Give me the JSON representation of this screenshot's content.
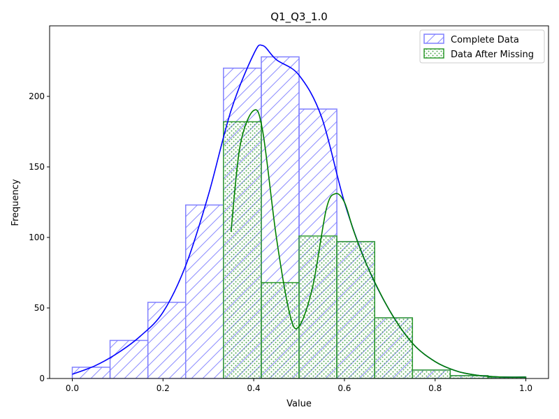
{
  "chart_data": {
    "type": "histogram",
    "title": "Q1_Q3_1.0",
    "xlabel": "Value",
    "ylabel": "Frequency",
    "xlim": [
      -0.05,
      1.05
    ],
    "ylim": [
      0,
      250
    ],
    "xticks": [
      0.0,
      0.2,
      0.4,
      0.6,
      0.8,
      1.0
    ],
    "xtick_labels": [
      "0.0",
      "0.2",
      "0.4",
      "0.6",
      "0.8",
      "1.0"
    ],
    "yticks": [
      0,
      50,
      100,
      150,
      200
    ],
    "ytick_labels": [
      "0",
      "50",
      "100",
      "150",
      "200"
    ],
    "legend_position": "top-right",
    "bin_edges": [
      0.0,
      0.0833,
      0.1667,
      0.25,
      0.3333,
      0.4167,
      0.5,
      0.5833,
      0.6667,
      0.75,
      0.8333,
      0.9167,
      1.0
    ],
    "series": [
      {
        "name": "Complete Data",
        "color": "#0000ff",
        "hatch": "diagonal",
        "counts": [
          8,
          27,
          54,
          123,
          220,
          228,
          191,
          97,
          43,
          6,
          2,
          1
        ],
        "kde": [
          [
            0.0,
            3
          ],
          [
            0.05,
            9
          ],
          [
            0.1,
            18
          ],
          [
            0.15,
            30
          ],
          [
            0.2,
            47
          ],
          [
            0.25,
            80
          ],
          [
            0.3,
            130
          ],
          [
            0.35,
            190
          ],
          [
            0.4,
            230
          ],
          [
            0.42,
            236
          ],
          [
            0.45,
            226
          ],
          [
            0.5,
            215
          ],
          [
            0.55,
            185
          ],
          [
            0.6,
            125
          ],
          [
            0.65,
            80
          ],
          [
            0.7,
            48
          ],
          [
            0.75,
            25
          ],
          [
            0.8,
            12
          ],
          [
            0.85,
            5
          ],
          [
            0.9,
            2
          ],
          [
            0.95,
            1
          ],
          [
            1.0,
            1
          ]
        ]
      },
      {
        "name": "Data After Missing",
        "color": "#008000",
        "hatch": "dots",
        "counts": [
          0,
          0,
          0,
          0,
          182,
          68,
          101,
          97,
          43,
          6,
          2,
          1
        ],
        "kde": [
          [
            0.35,
            104
          ],
          [
            0.37,
            165
          ],
          [
            0.4,
            190
          ],
          [
            0.42,
            175
          ],
          [
            0.45,
            100
          ],
          [
            0.48,
            45
          ],
          [
            0.5,
            37
          ],
          [
            0.53,
            65
          ],
          [
            0.56,
            120
          ],
          [
            0.58,
            131
          ],
          [
            0.6,
            125
          ],
          [
            0.62,
            105
          ],
          [
            0.65,
            80
          ],
          [
            0.7,
            48
          ],
          [
            0.75,
            25
          ],
          [
            0.8,
            12
          ],
          [
            0.85,
            5
          ],
          [
            0.9,
            2
          ],
          [
            0.95,
            1
          ],
          [
            1.0,
            1
          ]
        ]
      }
    ]
  }
}
